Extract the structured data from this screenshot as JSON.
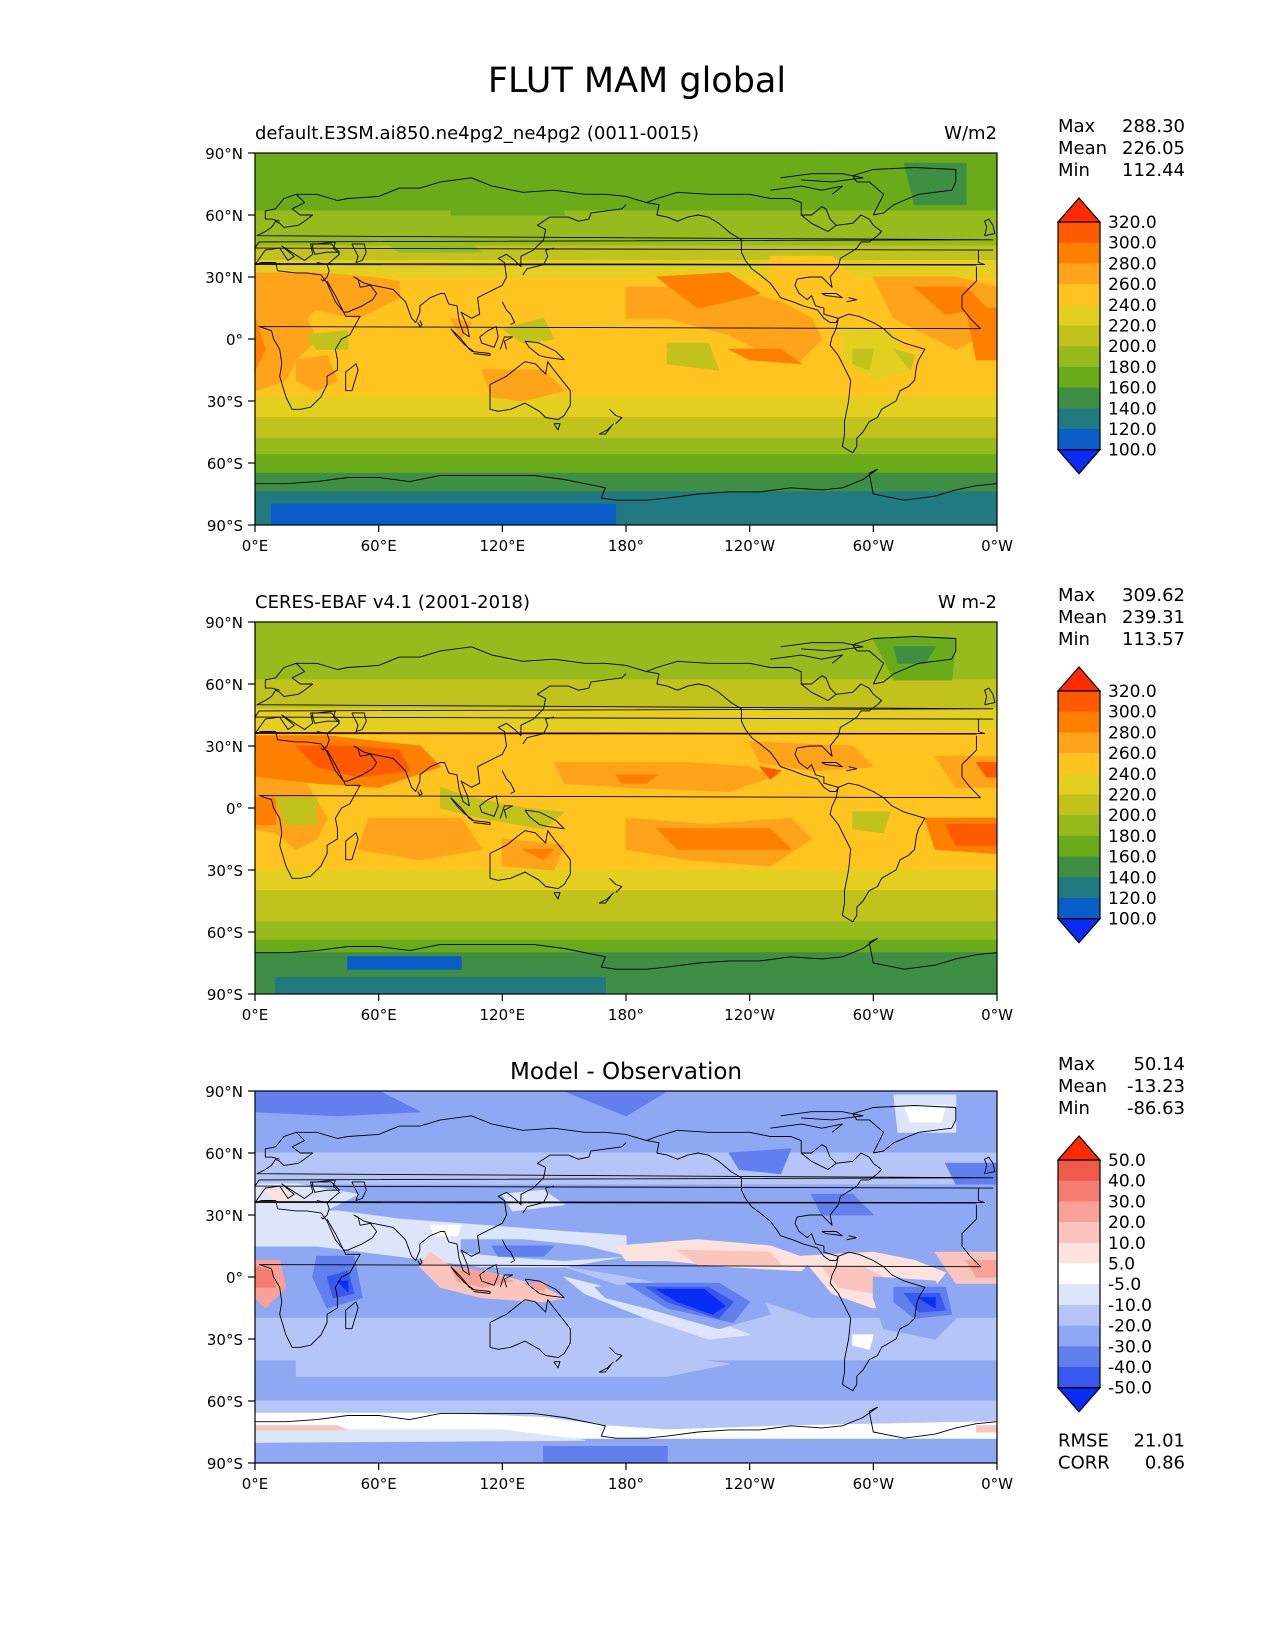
{
  "title": "FLUT MAM global",
  "colormaps": {
    "absolute": {
      "levels": [
        "320.0",
        "300.0",
        "280.0",
        "260.0",
        "240.0",
        "220.0",
        "200.0",
        "180.0",
        "160.0",
        "140.0",
        "120.0",
        "100.0"
      ],
      "colors": [
        "#ff2a00",
        "#ff5a00",
        "#ff7f00",
        "#ffa31a",
        "#ffc41f",
        "#e3cf1f",
        "#c2c21c",
        "#97bb1c",
        "#6aab19",
        "#3e8f43",
        "#217a80",
        "#0a5cc8",
        "#0a2df5"
      ]
    },
    "diff": {
      "levels": [
        "50.0",
        "40.0",
        "30.0",
        "20.0",
        "10.0",
        "5.0",
        "-5.0",
        "-10.0",
        "-20.0",
        "-30.0",
        "-40.0",
        "-50.0"
      ],
      "colors": [
        "#ff2a00",
        "#f05a4a",
        "#f47c70",
        "#f8a198",
        "#fbc5be",
        "#fde2de",
        "#ffffff",
        "#dde5fb",
        "#b5c5f7",
        "#8fa8f3",
        "#6180ee",
        "#3858f0",
        "#0a2df5"
      ]
    }
  },
  "axes": {
    "yticks": [
      "90°N",
      "60°N",
      "30°N",
      "0°",
      "30°S",
      "60°S",
      "90°S"
    ],
    "xticks": [
      "0°E",
      "60°E",
      "120°E",
      "180°",
      "120°W",
      "60°W",
      "0°W"
    ]
  },
  "panels": [
    {
      "id": "test",
      "left_title": "default.E3SM.ai850.ne4pg2_ne4pg2 (0011-0015)",
      "center_title": "",
      "units": "W/m2",
      "stats": [
        {
          "k": "Max",
          "v": "288.30"
        },
        {
          "k": "Mean",
          "v": "226.05"
        },
        {
          "k": "Min",
          "v": "112.44"
        }
      ],
      "colormap": "absolute"
    },
    {
      "id": "ref",
      "left_title": "CERES-EBAF v4.1 (2001-2018)",
      "center_title": "",
      "units": "W m-2",
      "stats": [
        {
          "k": "Max",
          "v": "309.62"
        },
        {
          "k": "Mean",
          "v": "239.31"
        },
        {
          "k": "Min",
          "v": "113.57"
        }
      ],
      "colormap": "absolute"
    },
    {
      "id": "diff",
      "left_title": "",
      "center_title": "Model - Observation",
      "units": "",
      "stats": [
        {
          "k": "Max",
          "v": "50.14"
        },
        {
          "k": "Mean",
          "v": "-13.23"
        },
        {
          "k": "Min",
          "v": "-86.63"
        }
      ],
      "colormap": "diff",
      "extra_stats": [
        {
          "k": "RMSE",
          "v": "21.01"
        },
        {
          "k": "CORR",
          "v": "0.86"
        }
      ]
    }
  ],
  "chart_data": {
    "type": "heatmap",
    "title": "FLUT MAM global",
    "projection": "plate carree",
    "xlim": [
      0,
      360
    ],
    "ylim": [
      -90,
      90
    ],
    "panels": [
      {
        "name": "default.E3SM.ai850.ne4pg2_ne4pg2 (0011-0015)",
        "units": "W/m2",
        "max": 288.3,
        "mean": 226.05,
        "min": 112.44
      },
      {
        "name": "CERES-EBAF v4.1 (2001-2018)",
        "units": "W m-2",
        "max": 309.62,
        "mean": 239.31,
        "min": 113.57
      },
      {
        "name": "Model - Observation",
        "max": 50.14,
        "mean": -13.23,
        "min": -86.63,
        "rmse": 21.01,
        "corr": 0.86
      }
    ]
  }
}
